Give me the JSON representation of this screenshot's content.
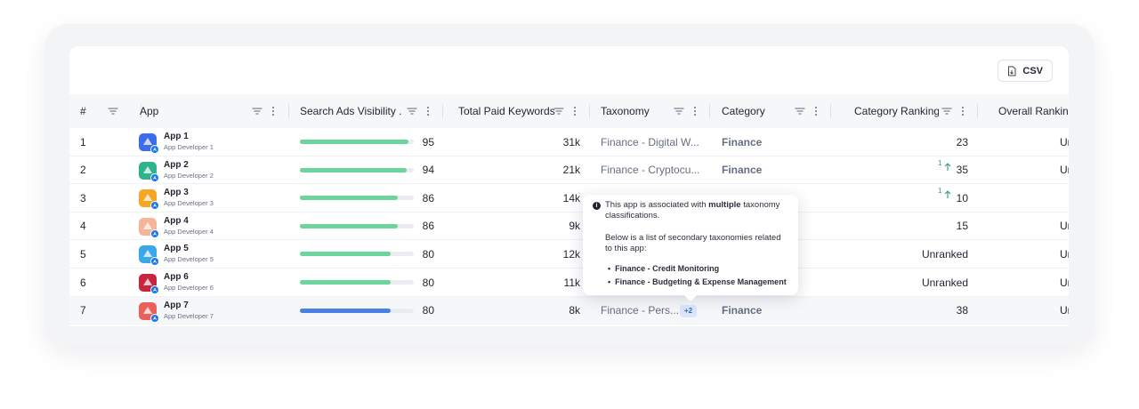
{
  "toolbar": {
    "csv_label": "CSV"
  },
  "columns": [
    "#",
    "App",
    "Search Ads Visibility ...",
    "Total Paid Keywords",
    "Taxonomy",
    "Category",
    "Category Ranking",
    "Overall Ranking"
  ],
  "rows": [
    {
      "num": "1",
      "name": "App 1",
      "developer": "App Developer 1",
      "visibility": 95,
      "visibility_label": "95",
      "keywords": "31k",
      "taxonomy": "Finance - Digital W...",
      "category": "Finance",
      "ranking": "23",
      "delta": "",
      "overall": "Un",
      "icon_color": "#3b6ee8",
      "bar_color": "#6cd59b"
    },
    {
      "num": "2",
      "name": "App 2",
      "developer": "App Developer 2",
      "visibility": 94,
      "visibility_label": "94",
      "keywords": "21k",
      "taxonomy": "Finance - Cryptocu...",
      "category": "Finance",
      "ranking": "35",
      "delta": "1",
      "overall": "Un",
      "icon_color": "#2fb38a",
      "bar_color": "#6cd59b"
    },
    {
      "num": "3",
      "name": "App 3",
      "developer": "App Developer 3",
      "visibility": 86,
      "visibility_label": "86",
      "keywords": "14k",
      "taxonomy": "",
      "category": "",
      "ranking": "10",
      "delta": "1",
      "overall": "",
      "icon_color": "#f5a623",
      "bar_color": "#6cd59b"
    },
    {
      "num": "4",
      "name": "App 4",
      "developer": "App Developer 4",
      "visibility": 86,
      "visibility_label": "86",
      "keywords": "9k",
      "taxonomy": "",
      "category": "",
      "ranking": "15",
      "delta": "",
      "overall": "Un",
      "icon_color": "#f4b59a",
      "bar_color": "#6cd59b"
    },
    {
      "num": "5",
      "name": "App 5",
      "developer": "App Developer 5",
      "visibility": 80,
      "visibility_label": "80",
      "keywords": "12k",
      "taxonomy": "",
      "category": "",
      "ranking": "Unranked",
      "delta": "",
      "overall": "Un",
      "icon_color": "#3aa8e8",
      "bar_color": "#6cd59b"
    },
    {
      "num": "6",
      "name": "App 6",
      "developer": "App Developer 6",
      "visibility": 80,
      "visibility_label": "80",
      "keywords": "11k",
      "taxonomy": "",
      "category": "",
      "ranking": "Unranked",
      "delta": "",
      "overall": "Un",
      "icon_color": "#c8253f",
      "bar_color": "#6cd59b"
    },
    {
      "num": "7",
      "name": "App 7",
      "developer": "App Developer 7",
      "visibility": 80,
      "visibility_label": "80",
      "keywords": "8k",
      "taxonomy": "Finance - Pers...",
      "category": "Finance",
      "ranking": "38",
      "delta": "",
      "overall": "Un",
      "icon_color": "#e8615a",
      "bar_color": "#4a7fe6",
      "badge": "+2"
    }
  ],
  "tooltip": {
    "line1_pre": "This app is associated with ",
    "line1_bold": "multiple",
    "line1_post": " taxonomy classifications.",
    "line2": "Below is a list of secondary taxonomies related to this app:",
    "items": [
      "Finance - Credit Monitoring",
      "Finance - Budgeting & Expense Management"
    ]
  },
  "colors": {
    "accent": "#4a7fe6",
    "bar_green": "#6cd59b",
    "link_gray": "#656f82",
    "up_green": "#2f9e69"
  }
}
